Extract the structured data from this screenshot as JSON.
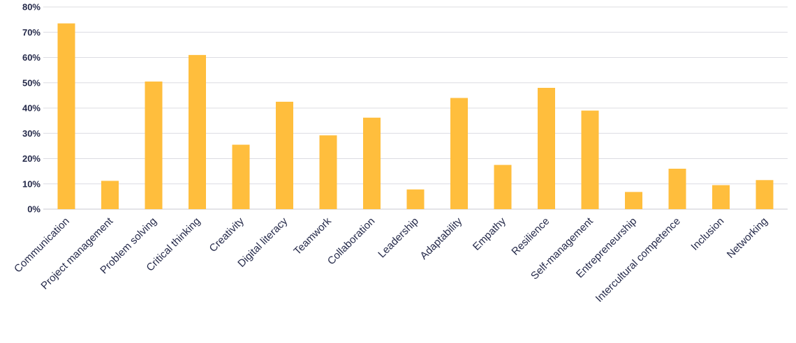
{
  "chart_data": {
    "type": "bar",
    "categories": [
      "Communication",
      "Project management",
      "Problem solving",
      "Critical thinking",
      "Creativity",
      "Digital literacy",
      "Teamwork",
      "Collaboration",
      "Leadership",
      "Adaptability",
      "Empathy",
      "Resilience",
      "Self-management",
      "Entrepreneurship",
      "Intercultural competence",
      "Inclusion",
      "Networking"
    ],
    "values": [
      73.5,
      11.2,
      50.5,
      61,
      25.5,
      42.5,
      29.2,
      36.2,
      7.8,
      44,
      17.5,
      48,
      39,
      6.8,
      16,
      9.5,
      11.5
    ],
    "ylim": [
      0,
      80
    ],
    "yticks": [
      0,
      10,
      20,
      30,
      40,
      50,
      60,
      70,
      80
    ],
    "ytick_labels": [
      "0%",
      "10%",
      "20%",
      "30%",
      "40%",
      "50%",
      "60%",
      "70%",
      "80%"
    ],
    "title": "",
    "xlabel": "",
    "ylabel": "",
    "grid": true,
    "legend": false,
    "bar_color": "#ffbe3d",
    "text_color": "#252a4a",
    "grid_color": "#dcdce2"
  }
}
